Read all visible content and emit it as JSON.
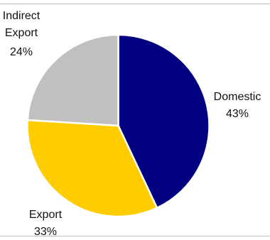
{
  "chart_data": {
    "type": "pie",
    "slices": [
      {
        "label": "Domestic",
        "value": 43,
        "display_value": "43%",
        "color": "#000080"
      },
      {
        "label": "Export",
        "value": 33,
        "display_value": "33%",
        "color": "#ffcc00"
      },
      {
        "label": "Indirect Export",
        "value": 24,
        "display_value": "24%",
        "color": "#c0c0c0"
      }
    ]
  }
}
